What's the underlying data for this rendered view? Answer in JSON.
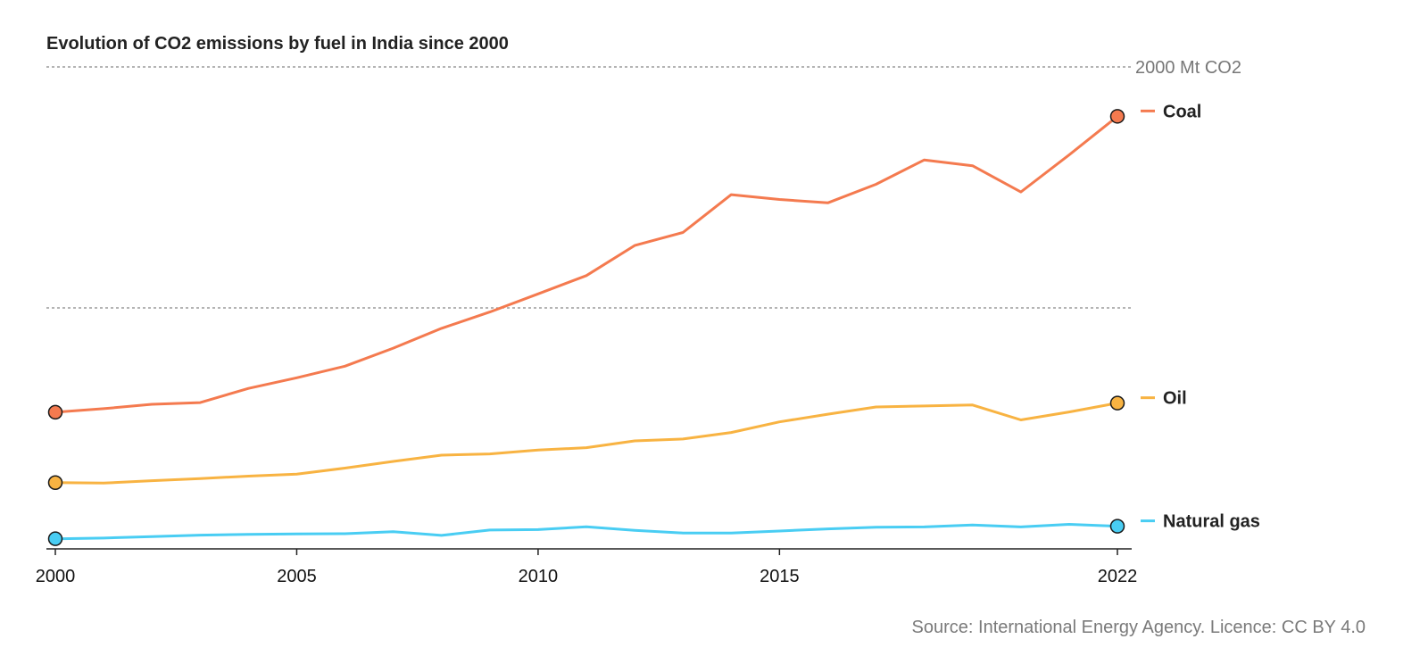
{
  "chart_data": {
    "type": "line",
    "title": "Evolution of CO2 emissions by fuel in India since 2000",
    "source": "Source: International Energy Agency. Licence: CC BY 4.0",
    "xlim": [
      2000,
      2022
    ],
    "ylim": [
      0,
      2000
    ],
    "x_ticks": [
      2000,
      2005,
      2010,
      2015,
      2022
    ],
    "gridlines": [
      {
        "value": 1000,
        "label": ""
      },
      {
        "value": 2000,
        "label": "2000 Mt CO2"
      }
    ],
    "x": [
      2000,
      2001,
      2002,
      2003,
      2004,
      2005,
      2006,
      2007,
      2008,
      2009,
      2010,
      2011,
      2012,
      2013,
      2014,
      2015,
      2016,
      2017,
      2018,
      2019,
      2020,
      2021,
      2022
    ],
    "series": [
      {
        "name": "Coal",
        "color": "#f47a4f",
        "values": [
          567,
          582,
          600,
          607,
          666,
          710,
          758,
          833,
          915,
          983,
          1058,
          1134,
          1259,
          1313,
          1470,
          1450,
          1436,
          1513,
          1614,
          1590,
          1481,
          1635,
          1795
        ]
      },
      {
        "name": "Oil",
        "color": "#f8b342",
        "values": [
          275,
          273,
          283,
          292,
          302,
          310,
          335,
          363,
          389,
          394,
          410,
          420,
          448,
          456,
          483,
          527,
          559,
          589,
          593,
          597,
          535,
          568,
          605
        ]
      },
      {
        "name": "Natural gas",
        "color": "#49cdf3",
        "values": [
          42,
          45,
          51,
          57,
          60,
          62,
          63,
          71,
          56,
          78,
          80,
          92,
          77,
          66,
          66,
          74,
          83,
          90,
          91,
          99,
          91,
          102,
          94
        ]
      }
    ]
  }
}
